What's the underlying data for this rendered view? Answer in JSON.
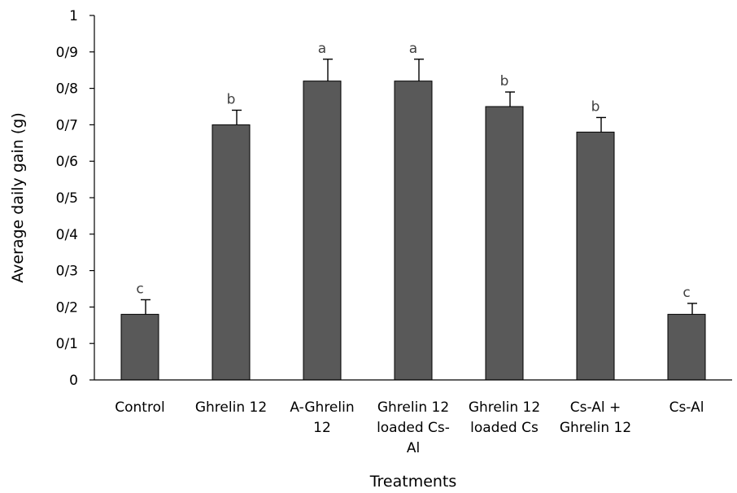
{
  "chart_data": {
    "type": "bar",
    "categories": [
      [
        "Control"
      ],
      [
        "Ghrelin 12"
      ],
      [
        "A-Ghrelin",
        "12"
      ],
      [
        "Ghrelin 12",
        "loaded Cs-",
        "Al"
      ],
      [
        "Ghrelin 12",
        "loaded Cs"
      ],
      [
        "Cs-Al +",
        "Ghrelin 12"
      ],
      [
        "Cs-Al"
      ]
    ],
    "values": [
      0.18,
      0.7,
      0.82,
      0.82,
      0.75,
      0.68,
      0.18
    ],
    "error_bars": [
      0.04,
      0.04,
      0.06,
      0.06,
      0.04,
      0.04,
      0.03
    ],
    "significance_letters": [
      "c",
      "b",
      "a",
      "a",
      "b",
      "b",
      "c"
    ],
    "xlabel": "Treatments",
    "ylabel": "Average daily gain (g)",
    "ylim": [
      0,
      1
    ],
    "yticks": [
      "0",
      "0/1",
      "0/2",
      "0/3",
      "0/4",
      "0/5",
      "0/6",
      "0/7",
      "0/8",
      "0/9",
      "1"
    ],
    "grid": false,
    "legend": "none",
    "bar_color": "#595959"
  }
}
